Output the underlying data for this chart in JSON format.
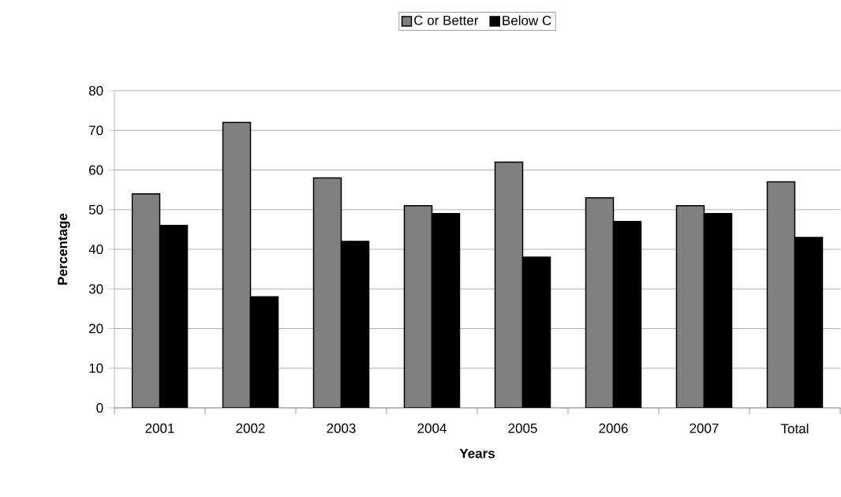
{
  "chart_data": {
    "type": "bar",
    "xlabel": "Years",
    "ylabel": "Percentage",
    "categories": [
      "2001",
      "2002",
      "2003",
      "2004",
      "2005",
      "2006",
      "2007",
      "Total"
    ],
    "series": [
      {
        "name": "C or Better",
        "color": "#808080",
        "values": [
          54,
          72,
          58,
          51,
          62,
          53,
          51,
          57
        ]
      },
      {
        "name": "Below C",
        "color": "#000000",
        "values": [
          46,
          28,
          42,
          49,
          38,
          47,
          49,
          43
        ]
      }
    ],
    "ylim": [
      0,
      80
    ],
    "yticks": [
      0,
      10,
      20,
      30,
      40,
      50,
      60,
      70,
      80
    ],
    "grid": "y",
    "legend": "top"
  }
}
